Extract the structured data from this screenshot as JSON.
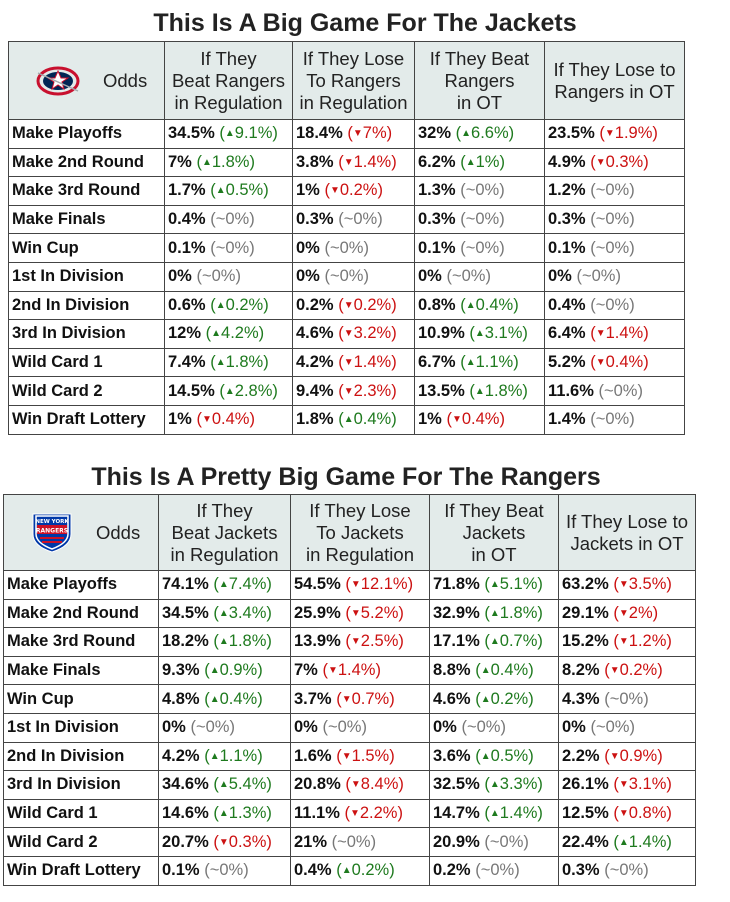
{
  "chart_data": [
    {
      "type": "table",
      "title": "This Is A Big Game For The Jackets",
      "corner_label": "Odds",
      "logo": "columbus-blue-jackets-logo",
      "columns": [
        "If They Beat Rangers in Regulation",
        "If They Lose To Rangers in Regulation",
        "If They Beat Rangers in OT",
        "If They Lose to Rangers in OT"
      ],
      "column_lines": [
        [
          "If They",
          "Beat Rangers",
          "in Regulation"
        ],
        [
          "If They Lose",
          "To Rangers",
          "in Regulation"
        ],
        [
          "If They Beat",
          "Rangers",
          "in OT"
        ],
        [
          "If They Lose to",
          "Rangers in OT"
        ]
      ],
      "rows": [
        {
          "label": "Make Playoffs",
          "cells": [
            [
              "34.5%",
              "up",
              "9.1%"
            ],
            [
              "18.4%",
              "down",
              "7%"
            ],
            [
              "32%",
              "up",
              "6.6%"
            ],
            [
              "23.5%",
              "down",
              "1.9%"
            ]
          ]
        },
        {
          "label": "Make 2nd Round",
          "cells": [
            [
              "7%",
              "up",
              "1.8%"
            ],
            [
              "3.8%",
              "down",
              "1.4%"
            ],
            [
              "6.2%",
              "up",
              "1%"
            ],
            [
              "4.9%",
              "down",
              "0.3%"
            ]
          ]
        },
        {
          "label": "Make 3rd Round",
          "cells": [
            [
              "1.7%",
              "up",
              "0.5%"
            ],
            [
              "1%",
              "down",
              "0.2%"
            ],
            [
              "1.3%",
              "none",
              "~0%"
            ],
            [
              "1.2%",
              "none",
              "~0%"
            ]
          ]
        },
        {
          "label": "Make Finals",
          "cells": [
            [
              "0.4%",
              "none",
              "~0%"
            ],
            [
              "0.3%",
              "none",
              "~0%"
            ],
            [
              "0.3%",
              "none",
              "~0%"
            ],
            [
              "0.3%",
              "none",
              "~0%"
            ]
          ]
        },
        {
          "label": "Win Cup",
          "cells": [
            [
              "0.1%",
              "none",
              "~0%"
            ],
            [
              "0%",
              "none",
              "~0%"
            ],
            [
              "0.1%",
              "none",
              "~0%"
            ],
            [
              "0.1%",
              "none",
              "~0%"
            ]
          ]
        },
        {
          "label": "1st In Division",
          "cells": [
            [
              "0%",
              "none",
              "~0%"
            ],
            [
              "0%",
              "none",
              "~0%"
            ],
            [
              "0%",
              "none",
              "~0%"
            ],
            [
              "0%",
              "none",
              "~0%"
            ]
          ]
        },
        {
          "label": "2nd In Division",
          "cells": [
            [
              "0.6%",
              "up",
              "0.2%"
            ],
            [
              "0.2%",
              "down",
              "0.2%"
            ],
            [
              "0.8%",
              "up",
              "0.4%"
            ],
            [
              "0.4%",
              "none",
              "~0%"
            ]
          ]
        },
        {
          "label": "3rd In Division",
          "cells": [
            [
              "12%",
              "up",
              "4.2%"
            ],
            [
              "4.6%",
              "down",
              "3.2%"
            ],
            [
              "10.9%",
              "up",
              "3.1%"
            ],
            [
              "6.4%",
              "down",
              "1.4%"
            ]
          ]
        },
        {
          "label": "Wild Card 1",
          "cells": [
            [
              "7.4%",
              "up",
              "1.8%"
            ],
            [
              "4.2%",
              "down",
              "1.4%"
            ],
            [
              "6.7%",
              "up",
              "1.1%"
            ],
            [
              "5.2%",
              "down",
              "0.4%"
            ]
          ]
        },
        {
          "label": "Wild Card 2",
          "cells": [
            [
              "14.5%",
              "up",
              "2.8%"
            ],
            [
              "9.4%",
              "down",
              "2.3%"
            ],
            [
              "13.5%",
              "up",
              "1.8%"
            ],
            [
              "11.6%",
              "none",
              "~0%"
            ]
          ]
        },
        {
          "label": "Win Draft Lottery",
          "cells": [
            [
              "1%",
              "down",
              "0.4%"
            ],
            [
              "1.8%",
              "up",
              "0.4%"
            ],
            [
              "1%",
              "down",
              "0.4%"
            ],
            [
              "1.4%",
              "none",
              "~0%"
            ]
          ]
        }
      ]
    },
    {
      "type": "table",
      "title": "This Is A Pretty Big Game For The Rangers",
      "corner_label": "Odds",
      "logo": "new-york-rangers-logo",
      "logo_text": [
        "NEW YORK",
        "RANGERS"
      ],
      "columns": [
        "If They Beat Jackets in Regulation",
        "If They Lose To Jackets in Regulation",
        "If They Beat Jackets in OT",
        "If They Lose to Jackets in OT"
      ],
      "column_lines": [
        [
          "If They",
          "Beat Jackets",
          "in Regulation"
        ],
        [
          "If They Lose",
          "To Jackets",
          "in Regulation"
        ],
        [
          "If They Beat",
          "Jackets",
          "in OT"
        ],
        [
          "If They Lose to",
          "Jackets in OT"
        ]
      ],
      "rows": [
        {
          "label": "Make Playoffs",
          "cells": [
            [
              "74.1%",
              "up",
              "7.4%"
            ],
            [
              "54.5%",
              "down",
              "12.1%"
            ],
            [
              "71.8%",
              "up",
              "5.1%"
            ],
            [
              "63.2%",
              "down",
              "3.5%"
            ]
          ]
        },
        {
          "label": "Make 2nd Round",
          "cells": [
            [
              "34.5%",
              "up",
              "3.4%"
            ],
            [
              "25.9%",
              "down",
              "5.2%"
            ],
            [
              "32.9%",
              "up",
              "1.8%"
            ],
            [
              "29.1%",
              "down",
              "2%"
            ]
          ]
        },
        {
          "label": "Make 3rd Round",
          "cells": [
            [
              "18.2%",
              "up",
              "1.8%"
            ],
            [
              "13.9%",
              "down",
              "2.5%"
            ],
            [
              "17.1%",
              "up",
              "0.7%"
            ],
            [
              "15.2%",
              "down",
              "1.2%"
            ]
          ]
        },
        {
          "label": "Make Finals",
          "cells": [
            [
              "9.3%",
              "up",
              "0.9%"
            ],
            [
              "7%",
              "down",
              "1.4%"
            ],
            [
              "8.8%",
              "up",
              "0.4%"
            ],
            [
              "8.2%",
              "down",
              "0.2%"
            ]
          ]
        },
        {
          "label": "Win Cup",
          "cells": [
            [
              "4.8%",
              "up",
              "0.4%"
            ],
            [
              "3.7%",
              "down",
              "0.7%"
            ],
            [
              "4.6%",
              "up",
              "0.2%"
            ],
            [
              "4.3%",
              "none",
              "~0%"
            ]
          ]
        },
        {
          "label": "1st In Division",
          "cells": [
            [
              "0%",
              "none",
              "~0%"
            ],
            [
              "0%",
              "none",
              "~0%"
            ],
            [
              "0%",
              "none",
              "~0%"
            ],
            [
              "0%",
              "none",
              "~0%"
            ]
          ]
        },
        {
          "label": "2nd In Division",
          "cells": [
            [
              "4.2%",
              "up",
              "1.1%"
            ],
            [
              "1.6%",
              "down",
              "1.5%"
            ],
            [
              "3.6%",
              "up",
              "0.5%"
            ],
            [
              "2.2%",
              "down",
              "0.9%"
            ]
          ]
        },
        {
          "label": "3rd In Division",
          "cells": [
            [
              "34.6%",
              "up",
              "5.4%"
            ],
            [
              "20.8%",
              "down",
              "8.4%"
            ],
            [
              "32.5%",
              "up",
              "3.3%"
            ],
            [
              "26.1%",
              "down",
              "3.1%"
            ]
          ]
        },
        {
          "label": "Wild Card 1",
          "cells": [
            [
              "14.6%",
              "up",
              "1.3%"
            ],
            [
              "11.1%",
              "down",
              "2.2%"
            ],
            [
              "14.7%",
              "up",
              "1.4%"
            ],
            [
              "12.5%",
              "down",
              "0.8%"
            ]
          ]
        },
        {
          "label": "Wild Card 2",
          "cells": [
            [
              "20.7%",
              "down",
              "0.3%"
            ],
            [
              "21%",
              "none",
              "~0%"
            ],
            [
              "20.9%",
              "none",
              "~0%"
            ],
            [
              "22.4%",
              "up",
              "1.4%"
            ]
          ]
        },
        {
          "label": "Win Draft Lottery",
          "cells": [
            [
              "0.1%",
              "none",
              "~0%"
            ],
            [
              "0.4%",
              "up",
              "0.2%"
            ],
            [
              "0.2%",
              "none",
              "~0%"
            ],
            [
              "0.3%",
              "none",
              "~0%"
            ]
          ]
        }
      ]
    }
  ]
}
